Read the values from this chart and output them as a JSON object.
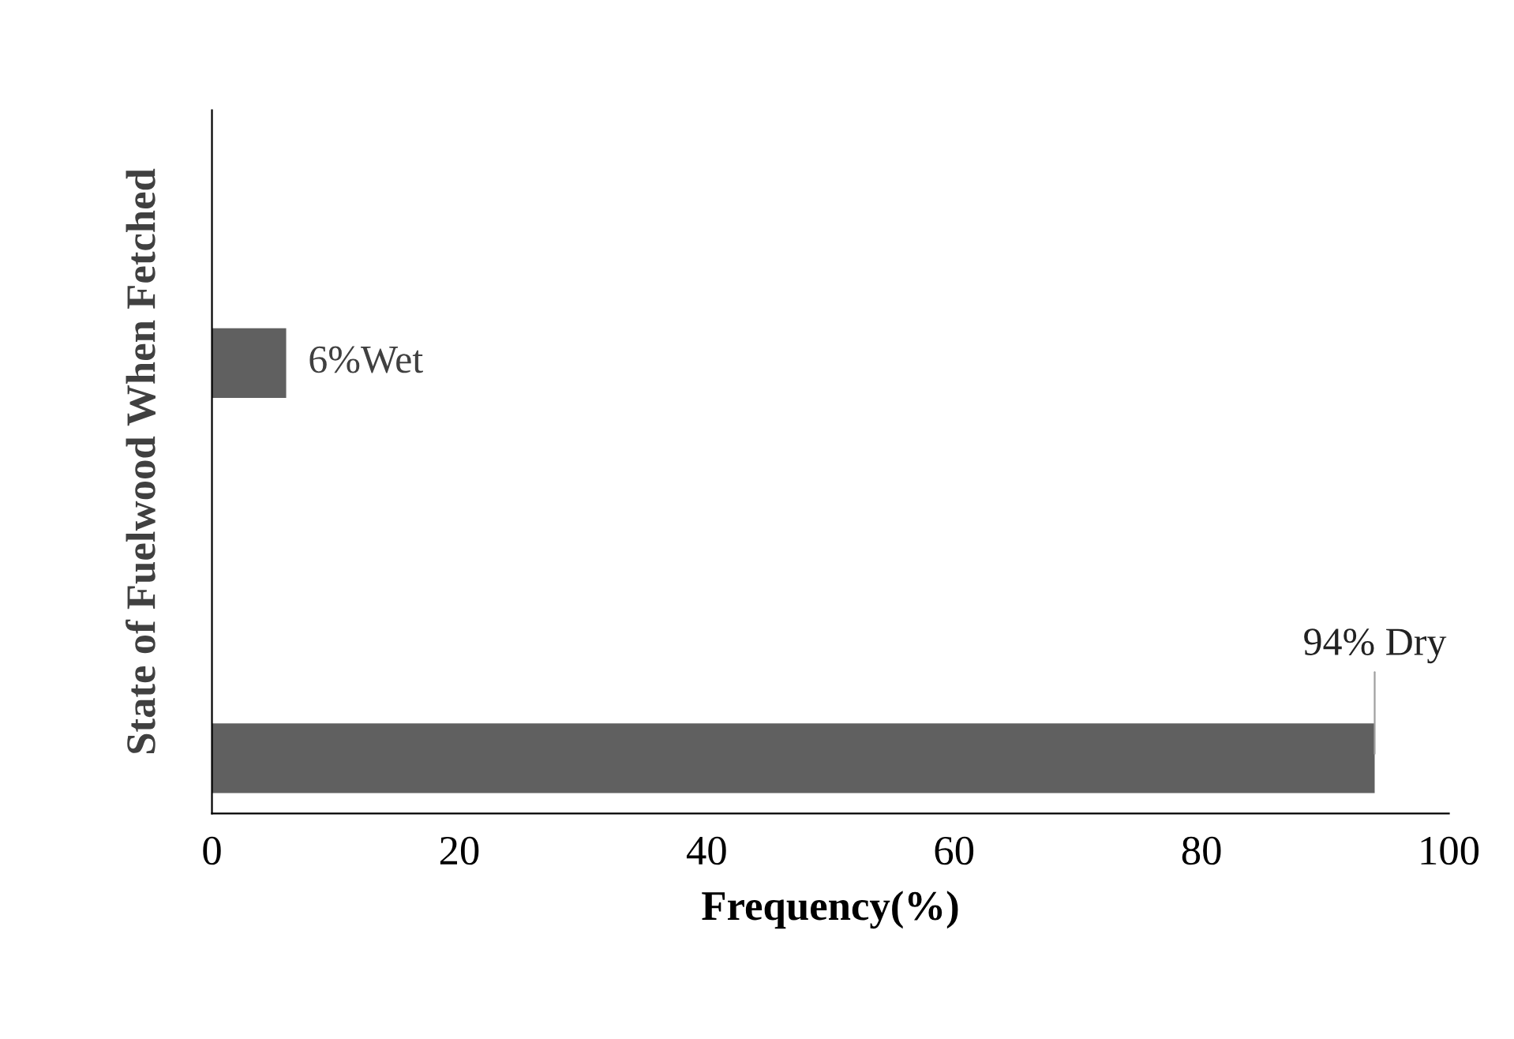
{
  "chart_data": {
    "type": "bar",
    "orientation": "horizontal",
    "xlabel": "Frequency(%)",
    "ylabel": "State of Fuelwood When Fetched",
    "categories": [
      null,
      null
    ],
    "values": [
      6,
      94
    ],
    "color": "#606060",
    "value_labels": [
      "6%Wet",
      "94% Dry"
    ],
    "xlim": [
      0,
      100
    ],
    "xticks": [
      0,
      20,
      40,
      60,
      80,
      100
    ],
    "grid": false,
    "tick_labels": "x"
  }
}
